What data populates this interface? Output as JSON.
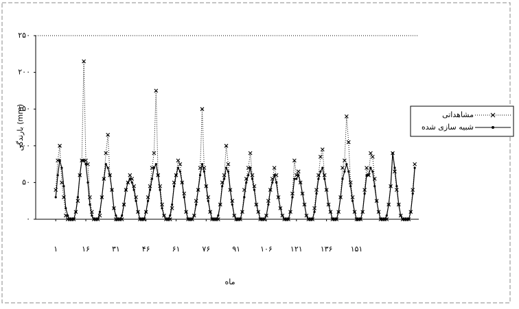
{
  "chart_data": {
    "type": "line",
    "y_label": "بارندگی (mm)",
    "x_label": "ماه",
    "xlim": [
      -9,
      182
    ],
    "ylim": [
      0,
      250
    ],
    "xticks": [
      {
        "value": 1,
        "label": "۱"
      },
      {
        "value": 16,
        "label": "۱۶"
      },
      {
        "value": 31,
        "label": "۳۱"
      },
      {
        "value": 46,
        "label": "۴۶"
      },
      {
        "value": 61,
        "label": "۶۱"
      },
      {
        "value": 76,
        "label": "۷۶"
      },
      {
        "value": 91,
        "label": "۹۱"
      },
      {
        "value": 106,
        "label": "۱۰۶"
      },
      {
        "value": 121,
        "label": "۱۲۱"
      },
      {
        "value": 136,
        "label": "۱۳۶"
      },
      {
        "value": 151,
        "label": "۱۵۱"
      }
    ],
    "yticks": [
      {
        "value": 0,
        "label": "۰"
      },
      {
        "value": 50,
        "label": "۵۰"
      },
      {
        "value": 100,
        "label": "۱۰۰"
      },
      {
        "value": 150,
        "label": "۱۵۰"
      },
      {
        "value": 200,
        "label": "۲۰۰"
      },
      {
        "value": 250,
        "label": "۲۵۰"
      }
    ],
    "x": [
      1,
      2,
      3,
      4,
      5,
      6,
      7,
      8,
      9,
      10,
      11,
      12,
      13,
      14,
      15,
      16,
      17,
      18,
      19,
      20,
      21,
      22,
      23,
      24,
      25,
      26,
      27,
      28,
      29,
      30,
      31,
      32,
      33,
      34,
      35,
      36,
      37,
      38,
      39,
      40,
      41,
      42,
      43,
      44,
      45,
      46,
      47,
      48,
      49,
      50,
      51,
      52,
      53,
      54,
      55,
      56,
      57,
      58,
      59,
      60,
      61,
      62,
      63,
      64,
      65,
      66,
      67,
      68,
      69,
      70,
      71,
      72,
      73,
      74,
      75,
      76,
      77,
      78,
      79,
      80,
      81,
      82,
      83,
      84,
      85,
      86,
      87,
      88,
      89,
      90,
      91,
      92,
      93,
      94,
      95,
      96,
      97,
      98,
      99,
      100,
      101,
      102,
      103,
      104,
      105,
      106,
      107,
      108,
      109,
      110,
      111,
      112,
      113,
      114,
      115,
      116,
      117,
      118,
      119,
      120,
      121,
      122,
      123,
      124,
      125,
      126,
      127,
      128,
      129,
      130,
      131,
      132,
      133,
      134,
      135,
      136,
      137,
      138,
      139,
      140,
      141,
      142,
      143,
      144,
      145,
      146,
      147,
      148,
      149,
      150,
      151,
      152,
      153,
      154,
      155,
      156,
      157,
      158,
      159,
      160,
      161,
      162,
      163,
      164,
      165,
      166,
      167,
      168,
      169,
      170,
      171,
      172,
      173,
      174,
      175,
      176,
      177,
      178,
      179,
      180
    ],
    "series": [
      {
        "name": "مشاهداتی",
        "color": "#000000",
        "marker": "x",
        "values": [
          40,
          80,
          100,
          50,
          30,
          5,
          0,
          0,
          0,
          0,
          10,
          25,
          60,
          80,
          215,
          80,
          75,
          30,
          10,
          0,
          0,
          0,
          5,
          30,
          55,
          90,
          115,
          60,
          40,
          15,
          0,
          0,
          0,
          0,
          20,
          40,
          50,
          60,
          55,
          45,
          30,
          10,
          0,
          0,
          0,
          10,
          30,
          45,
          70,
          90,
          175,
          60,
          45,
          20,
          5,
          0,
          0,
          0,
          15,
          50,
          60,
          80,
          75,
          50,
          35,
          10,
          0,
          0,
          0,
          5,
          25,
          40,
          70,
          150,
          70,
          45,
          30,
          10,
          0,
          0,
          0,
          0,
          20,
          50,
          60,
          100,
          75,
          40,
          25,
          5,
          0,
          0,
          0,
          10,
          40,
          55,
          70,
          90,
          60,
          45,
          20,
          10,
          0,
          0,
          0,
          5,
          25,
          40,
          55,
          70,
          60,
          30,
          15,
          5,
          0,
          0,
          0,
          10,
          35,
          80,
          60,
          65,
          50,
          35,
          20,
          5,
          0,
          0,
          0,
          15,
          40,
          60,
          85,
          95,
          60,
          40,
          20,
          10,
          0,
          0,
          0,
          10,
          30,
          70,
          80,
          140,
          105,
          50,
          30,
          10,
          0,
          0,
          0,
          10,
          40,
          70,
          60,
          90,
          85,
          55,
          25,
          10,
          0,
          0,
          0,
          0,
          20,
          45,
          90,
          65,
          40,
          20,
          5,
          0,
          0,
          0,
          0,
          10,
          40,
          75
        ]
      },
      {
        "name": "شبیه سازی شده",
        "color": "#000000",
        "marker": "dot",
        "values": [
          30,
          60,
          80,
          70,
          45,
          15,
          5,
          0,
          0,
          0,
          10,
          30,
          60,
          80,
          80,
          75,
          50,
          20,
          5,
          0,
          0,
          0,
          10,
          30,
          55,
          75,
          70,
          60,
          40,
          15,
          5,
          0,
          0,
          5,
          20,
          40,
          50,
          55,
          50,
          40,
          25,
          10,
          0,
          0,
          0,
          10,
          25,
          40,
          55,
          70,
          75,
          60,
          40,
          15,
          5,
          0,
          0,
          5,
          20,
          45,
          60,
          70,
          65,
          50,
          30,
          10,
          0,
          0,
          0,
          5,
          20,
          40,
          60,
          75,
          65,
          45,
          25,
          10,
          0,
          0,
          0,
          5,
          20,
          45,
          55,
          70,
          65,
          40,
          20,
          5,
          0,
          0,
          0,
          10,
          30,
          50,
          60,
          70,
          55,
          40,
          20,
          10,
          0,
          0,
          0,
          5,
          20,
          40,
          50,
          60,
          50,
          30,
          15,
          5,
          0,
          0,
          0,
          10,
          30,
          55,
          55,
          60,
          50,
          35,
          20,
          5,
          0,
          0,
          0,
          10,
          35,
          55,
          65,
          70,
          55,
          40,
          20,
          10,
          0,
          0,
          0,
          10,
          30,
          55,
          65,
          75,
          65,
          45,
          25,
          10,
          0,
          0,
          0,
          10,
          35,
          60,
          60,
          70,
          65,
          45,
          25,
          10,
          0,
          0,
          0,
          5,
          20,
          45,
          90,
          70,
          45,
          20,
          5,
          0,
          0,
          0,
          0,
          10,
          35,
          70
        ]
      }
    ]
  }
}
